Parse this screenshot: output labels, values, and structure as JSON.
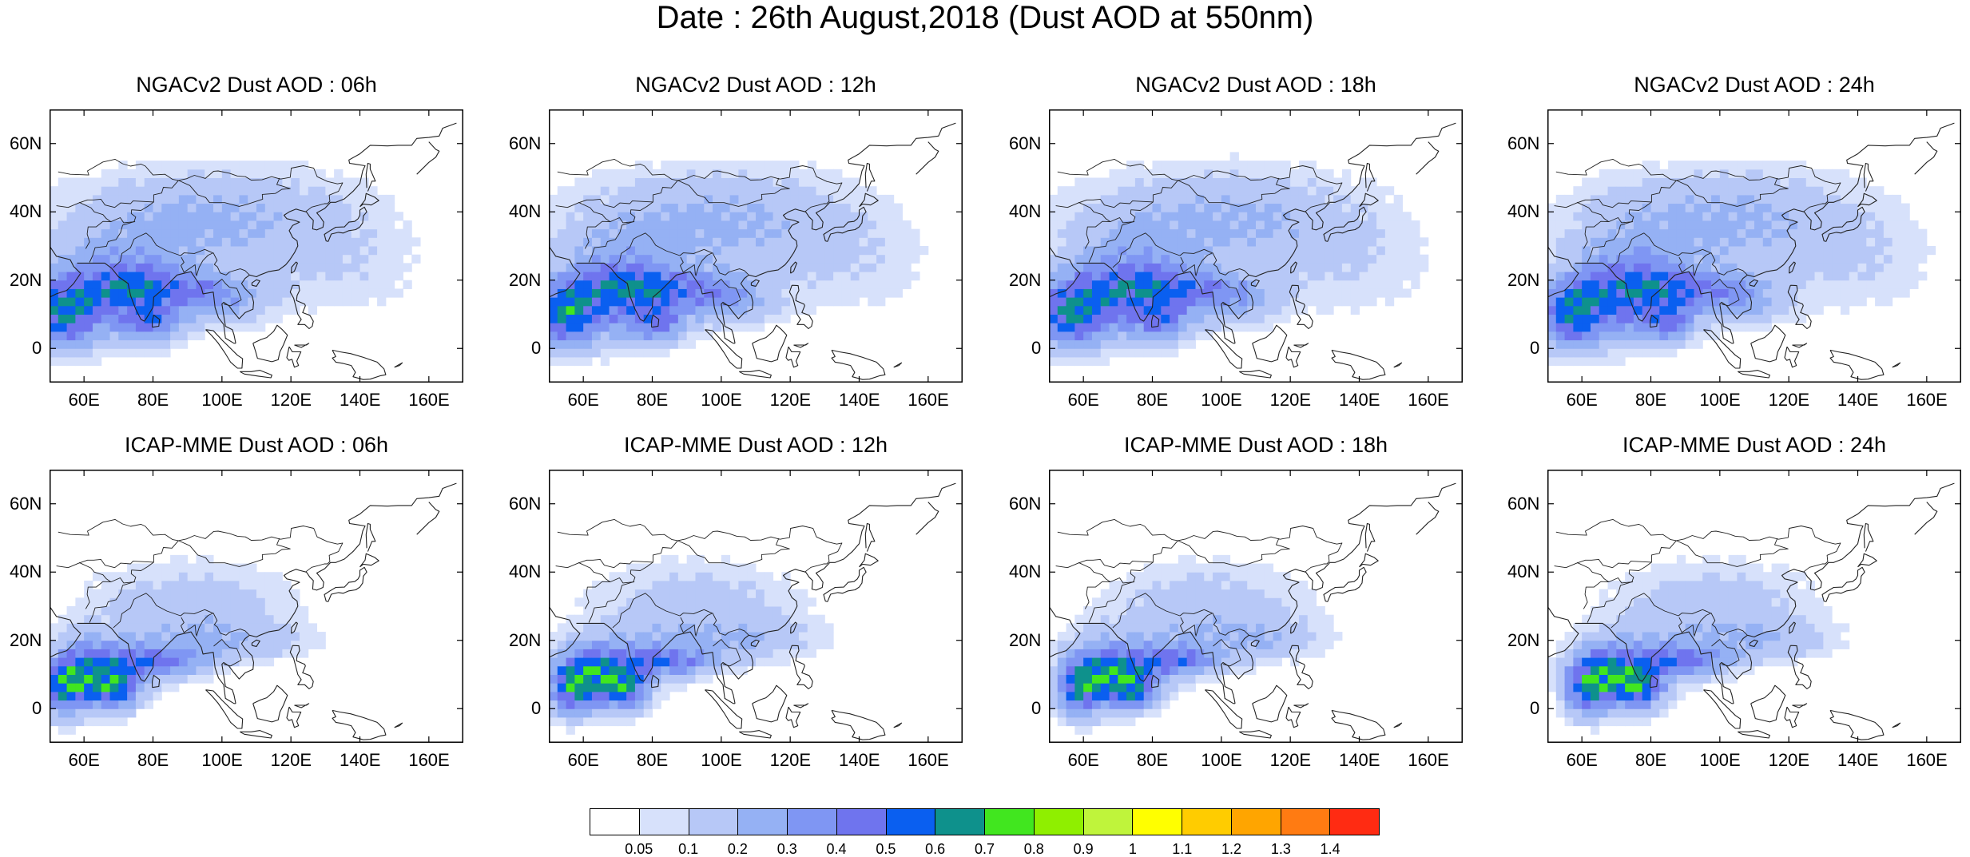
{
  "title": "Date : 26th August,2018 (Dust AOD at 550nm)",
  "panels": [
    {
      "title": "NGACv2 Dust AOD : 06h"
    },
    {
      "title": "NGACv2 Dust AOD : 12h"
    },
    {
      "title": "NGACv2 Dust AOD : 18h"
    },
    {
      "title": "NGACv2 Dust AOD : 24h"
    },
    {
      "title": "ICAP-MME Dust AOD : 06h"
    },
    {
      "title": "ICAP-MME Dust AOD : 12h"
    },
    {
      "title": "ICAP-MME Dust AOD : 18h"
    },
    {
      "title": "ICAP-MME Dust AOD : 24h"
    }
  ],
  "axes": {
    "x_ticks": [
      "60E",
      "80E",
      "100E",
      "120E",
      "140E",
      "160E"
    ],
    "y_ticks": [
      "60N",
      "40N",
      "20N",
      "0"
    ],
    "lon_range": [
      50,
      170
    ],
    "lat_range": [
      -10,
      70
    ]
  },
  "colorbar": {
    "colors": [
      "#ffffff",
      "#d7e1fb",
      "#b7c8f7",
      "#95b1f4",
      "#7f96f3",
      "#6f74ee",
      "#0a5ff0",
      "#0e918c",
      "#41e61f",
      "#8fef00",
      "#bff43b",
      "#ffff00",
      "#ffcc00",
      "#ffa500",
      "#ff7b12",
      "#ff2b12"
    ],
    "labels": [
      "0.05",
      "0.1",
      "0.2",
      "0.3",
      "0.4",
      "0.5",
      "0.6",
      "0.7",
      "0.8",
      "0.9",
      "1",
      "1.1",
      "1.2",
      "1.3",
      "1.4"
    ]
  }
}
